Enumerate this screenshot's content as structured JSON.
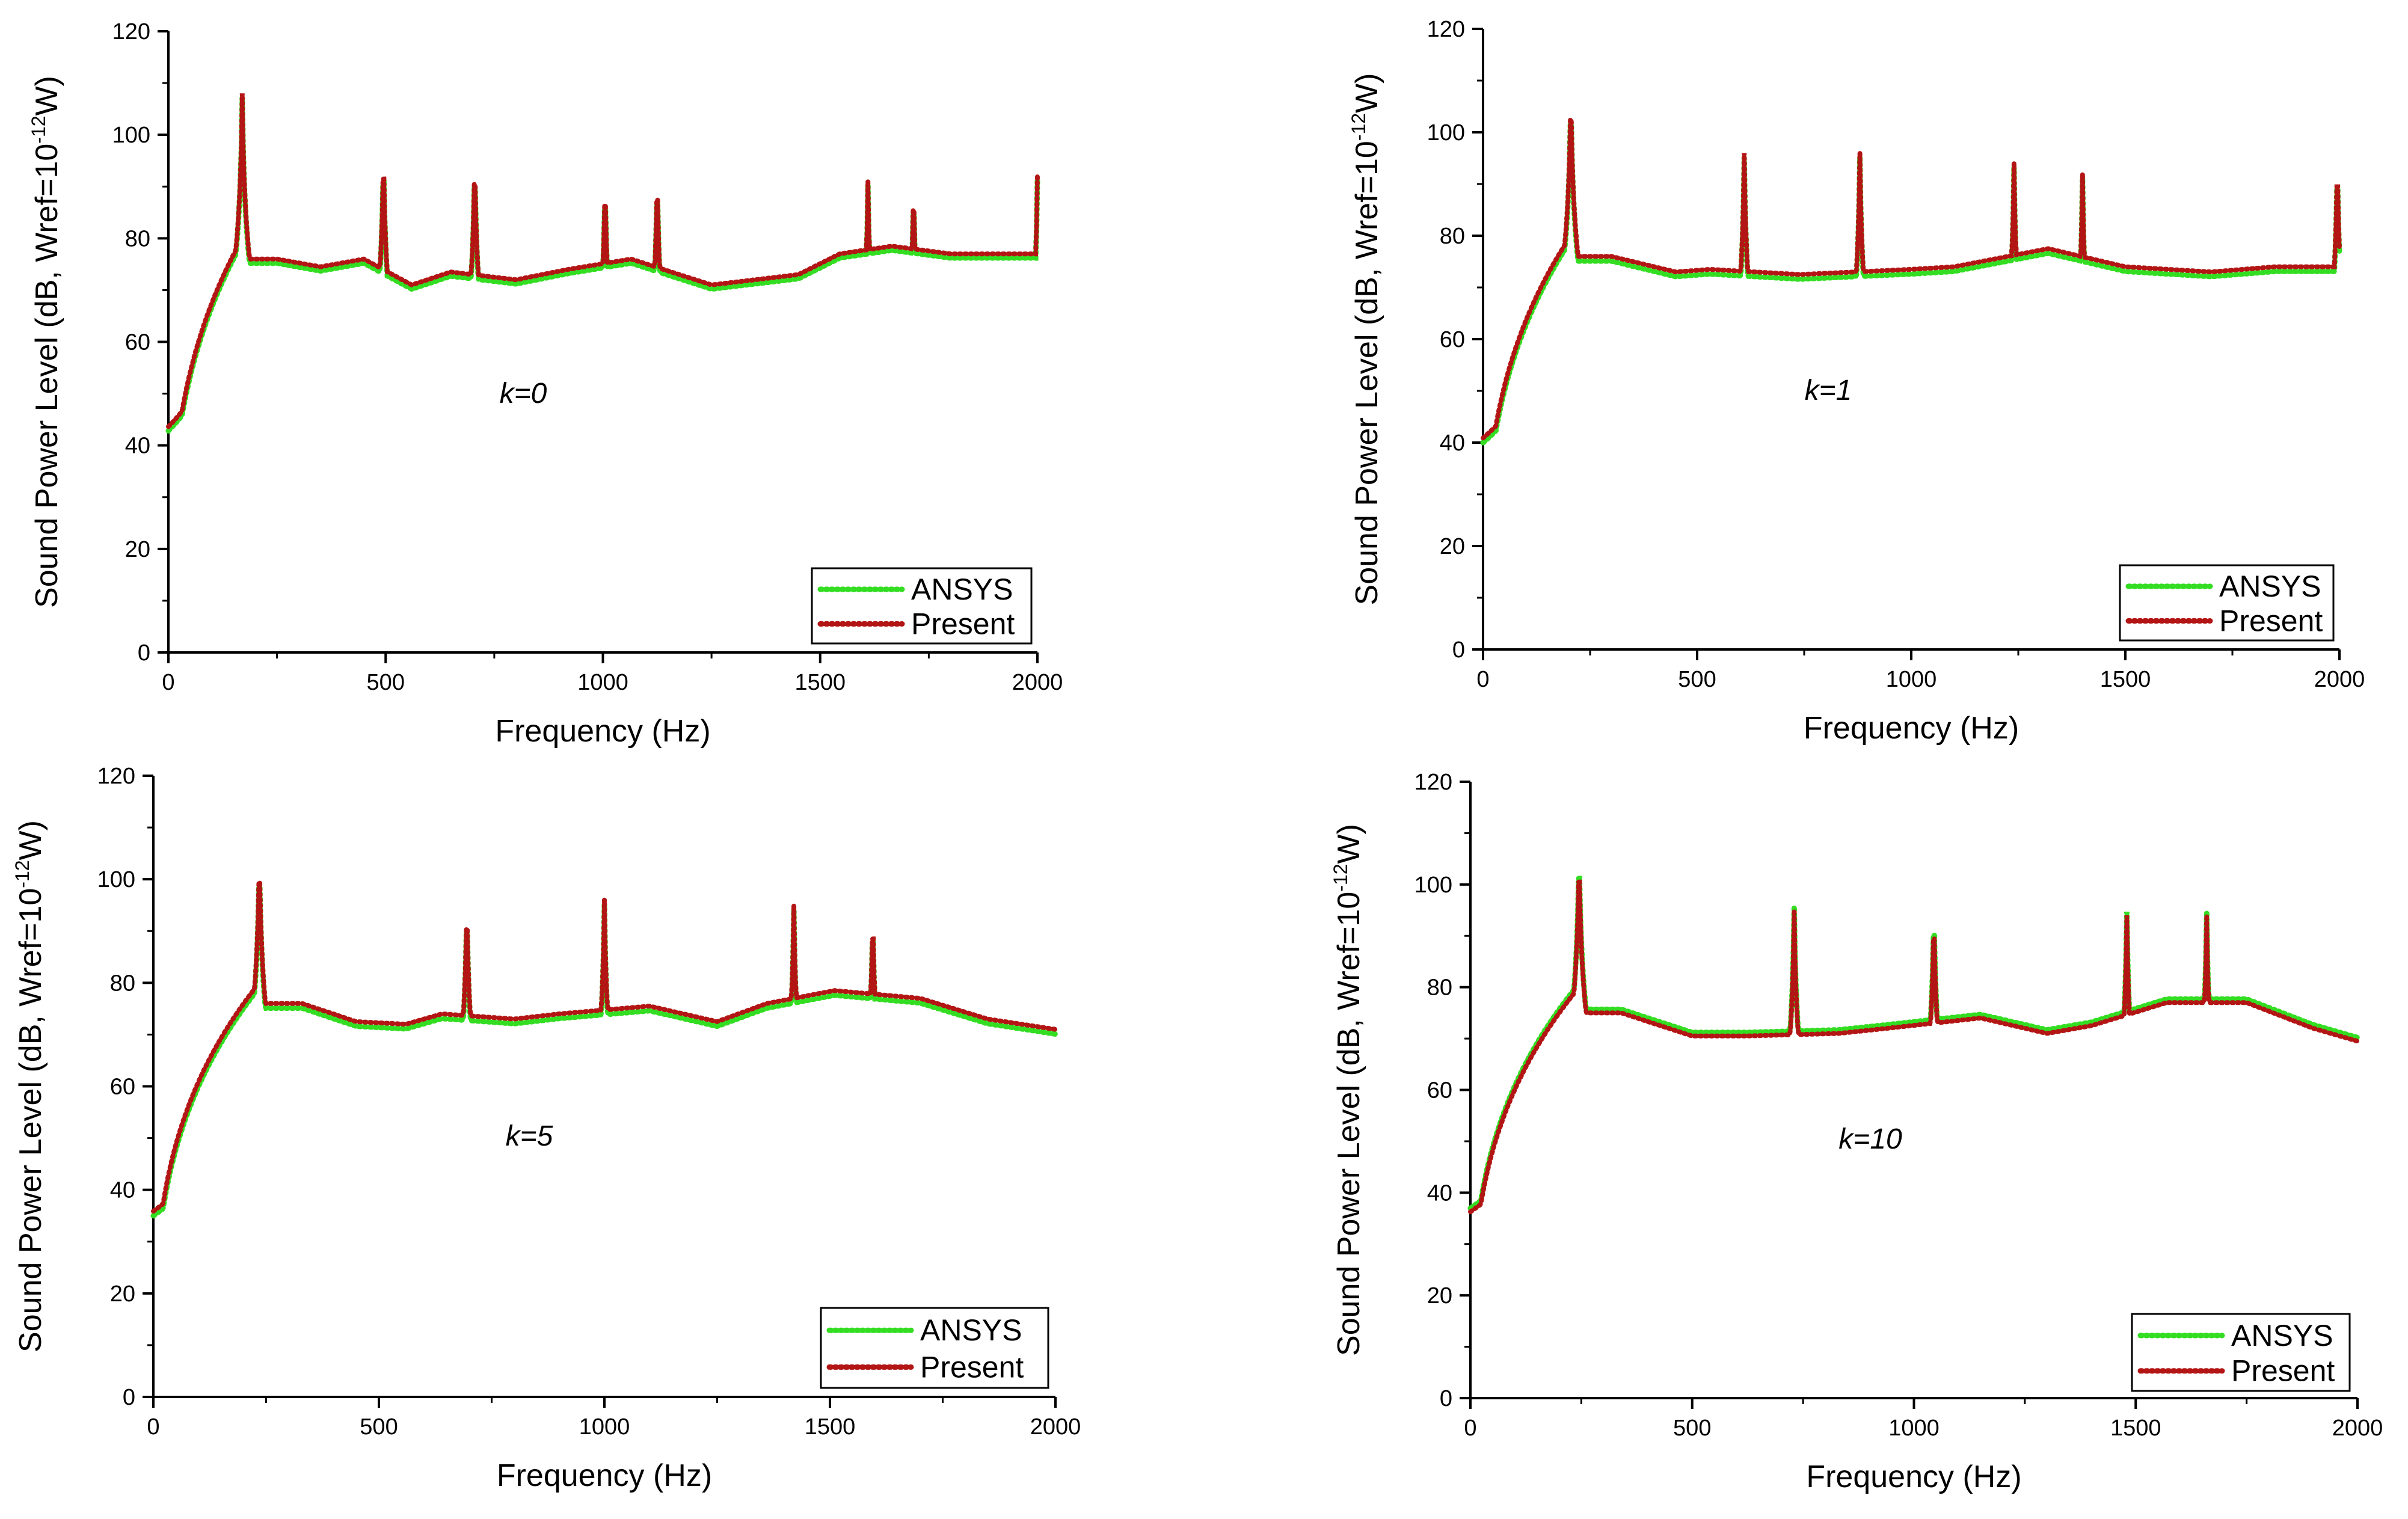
{
  "figure": {
    "ylabel": {
      "main": "Sound Power Level (dB, Wref=10",
      "sup": "-12",
      "tail": "W)"
    },
    "xlabel": "Frequency (Hz)",
    "colors": {
      "ansys": "#33dd22",
      "present": "#b31515"
    },
    "legend": [
      "ANSYS",
      "Present"
    ]
  },
  "chart_data": [
    {
      "type": "line",
      "annotation": "k=0",
      "xlabel": "Frequency (Hz)",
      "ylabel": "Sound Power Level (dB, Wref=10^-12W)",
      "xlim": [
        0,
        2000
      ],
      "ylim": [
        0,
        120
      ],
      "xticks": [
        0,
        500,
        1000,
        1500,
        2000
      ],
      "yticks": [
        0,
        20,
        40,
        60,
        80,
        100,
        120
      ],
      "legend": [
        "ANSYS",
        "Present"
      ],
      "peaks": [
        [
          170,
          108
        ],
        [
          495,
          97
        ],
        [
          705,
          96
        ],
        [
          1005,
          92
        ],
        [
          1125,
          93
        ],
        [
          1610,
          91
        ],
        [
          1715,
          91
        ],
        [
          2000,
          92
        ]
      ],
      "baseline": [
        [
          250,
          76
        ],
        [
          350,
          74.5
        ],
        [
          450,
          76
        ],
        [
          560,
          71
        ],
        [
          650,
          73.5
        ],
        [
          800,
          72
        ],
        [
          920,
          74
        ],
        [
          1065,
          76
        ],
        [
          1250,
          71
        ],
        [
          1450,
          73
        ],
        [
          1545,
          77
        ],
        [
          1665,
          78.5
        ],
        [
          1800,
          77
        ],
        [
          1900,
          77
        ]
      ],
      "series": [
        {
          "name": "ANSYS",
          "offset": -0.8
        },
        {
          "name": "Present",
          "offset": 0
        }
      ]
    },
    {
      "type": "line",
      "annotation": "k=1",
      "xlabel": "Frequency (Hz)",
      "ylabel": "Sound Power Level (dB, Wref=10^-12W)",
      "xlim": [
        0,
        2000
      ],
      "ylim": [
        0,
        120
      ],
      "xticks": [
        0,
        500,
        1000,
        1500,
        2000
      ],
      "yticks": [
        0,
        20,
        40,
        60,
        80,
        100,
        120
      ],
      "legend": [
        "ANSYS",
        "Present"
      ],
      "peaks": [
        [
          205,
          108
        ],
        [
          610,
          96
        ],
        [
          880,
          96
        ],
        [
          1240,
          94
        ],
        [
          1400,
          92
        ],
        [
          1995,
          95
        ]
      ],
      "baseline": [
        [
          300,
          76
        ],
        [
          450,
          73
        ],
        [
          530,
          73.5
        ],
        [
          740,
          72.5
        ],
        [
          1000,
          73.5
        ],
        [
          1100,
          74
        ],
        [
          1320,
          77.5
        ],
        [
          1500,
          74
        ],
        [
          1700,
          73
        ],
        [
          1850,
          74
        ]
      ],
      "series": [
        {
          "name": "ANSYS",
          "offset": -0.9
        },
        {
          "name": "Present",
          "offset": 0
        }
      ]
    },
    {
      "type": "line",
      "annotation": "k=5",
      "xlabel": "Frequency (Hz)",
      "ylabel": "Sound Power Level (dB, Wref=10^-12W)",
      "xlim": [
        0,
        2000
      ],
      "ylim": [
        0,
        120
      ],
      "xticks": [
        0,
        500,
        1000,
        1500,
        2000
      ],
      "yticks": [
        0,
        20,
        40,
        60,
        80,
        100,
        120
      ],
      "legend": [
        "ANSYS",
        "Present"
      ],
      "peaks": [
        [
          235,
          105
        ],
        [
          695,
          96
        ],
        [
          1000,
          96
        ],
        [
          1420,
          95
        ],
        [
          1595,
          94
        ]
      ],
      "baseline": [
        [
          330,
          76
        ],
        [
          450,
          72.5
        ],
        [
          560,
          72
        ],
        [
          640,
          74
        ],
        [
          800,
          73
        ],
        [
          900,
          74
        ],
        [
          1100,
          75.5
        ],
        [
          1250,
          72.5
        ],
        [
          1360,
          76
        ],
        [
          1510,
          78.5
        ],
        [
          1700,
          77
        ],
        [
          1850,
          73
        ],
        [
          2000,
          71
        ]
      ],
      "series": [
        {
          "name": "ANSYS",
          "offset": -0.9
        },
        {
          "name": "Present",
          "offset": 0
        }
      ]
    },
    {
      "type": "line",
      "annotation": "k=10",
      "xlabel": "Frequency (Hz)",
      "ylabel": "Sound Power Level (dB, Wref=10^-12W)",
      "xlim": [
        0,
        2000
      ],
      "ylim": [
        0,
        120
      ],
      "xticks": [
        0,
        500,
        1000,
        1500,
        2000
      ],
      "yticks": [
        0,
        20,
        40,
        60,
        80,
        100,
        120
      ],
      "legend": [
        "ANSYS",
        "Present"
      ],
      "peaks": [
        [
          245,
          106
        ],
        [
          730,
          95
        ],
        [
          1045,
          95
        ],
        [
          1480,
          94
        ],
        [
          1660,
          94
        ]
      ],
      "baseline": [
        [
          340,
          75
        ],
        [
          500,
          70.5
        ],
        [
          620,
          70.5
        ],
        [
          830,
          71
        ],
        [
          940,
          72
        ],
        [
          1150,
          74
        ],
        [
          1300,
          71
        ],
        [
          1400,
          72.5
        ],
        [
          1570,
          77
        ],
        [
          1750,
          77
        ],
        [
          1900,
          72
        ],
        [
          2000,
          69.5
        ]
      ],
      "series": [
        {
          "name": "ANSYS",
          "offset": 0.7
        },
        {
          "name": "Present",
          "offset": 0
        }
      ]
    }
  ]
}
